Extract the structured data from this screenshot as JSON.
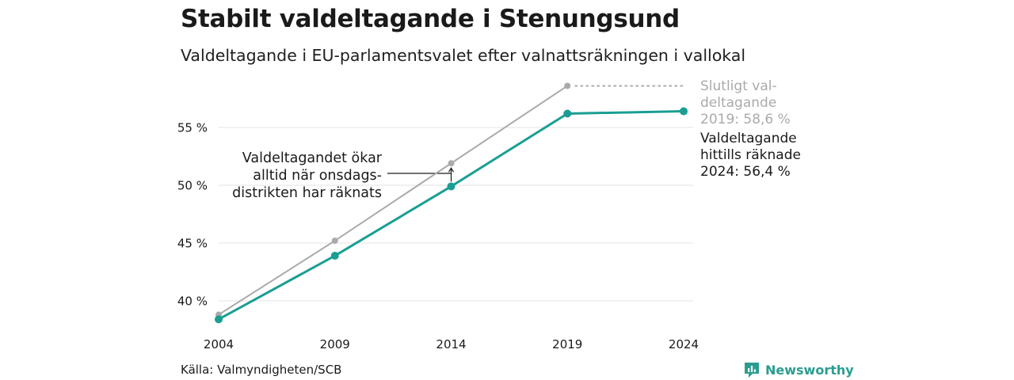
{
  "header": {
    "title": "Stabilt valdeltagande i Stenungsund",
    "subtitle": "Valdeltagande i EU-parlamentsvalet efter valnattsräkningen i vallokal"
  },
  "footer": {
    "source": "Källa: Valmyndigheten/SCB",
    "brand": "Newsworthy"
  },
  "chart_data": {
    "type": "line",
    "title": "Stabilt valdeltagande i Stenungsund",
    "subtitle": "Valdeltagande i EU-parlamentsvalet efter valnattsräkningen i vallokal",
    "x": [
      "2004",
      "2009",
      "2014",
      "2019",
      "2024"
    ],
    "ylim": [
      38.5,
      60
    ],
    "yticks": [
      40,
      45,
      50,
      55
    ],
    "ytick_labels": [
      "40 %",
      "45 %",
      "50 %",
      "55 %"
    ],
    "grid": true,
    "series": [
      {
        "key": "final",
        "values": [
          38.8,
          45.2,
          51.9,
          58.6,
          null
        ],
        "color": "#aaaaaa"
      },
      {
        "key": "counted",
        "values": [
          38.4,
          43.9,
          49.9,
          56.2,
          56.4
        ],
        "color": "#1a9e93"
      }
    ],
    "annotations": {
      "final_label": [
        "Slutligt val-",
        "deltagande",
        "2019: 58,6 %"
      ],
      "counted_label": [
        "Valdeltagande",
        "hittills räknade",
        "2024: 56,4 %"
      ],
      "callout": [
        "Valdeltagandet ökar",
        "alltid när onsdags-",
        "distrikten har räknats"
      ]
    }
  }
}
